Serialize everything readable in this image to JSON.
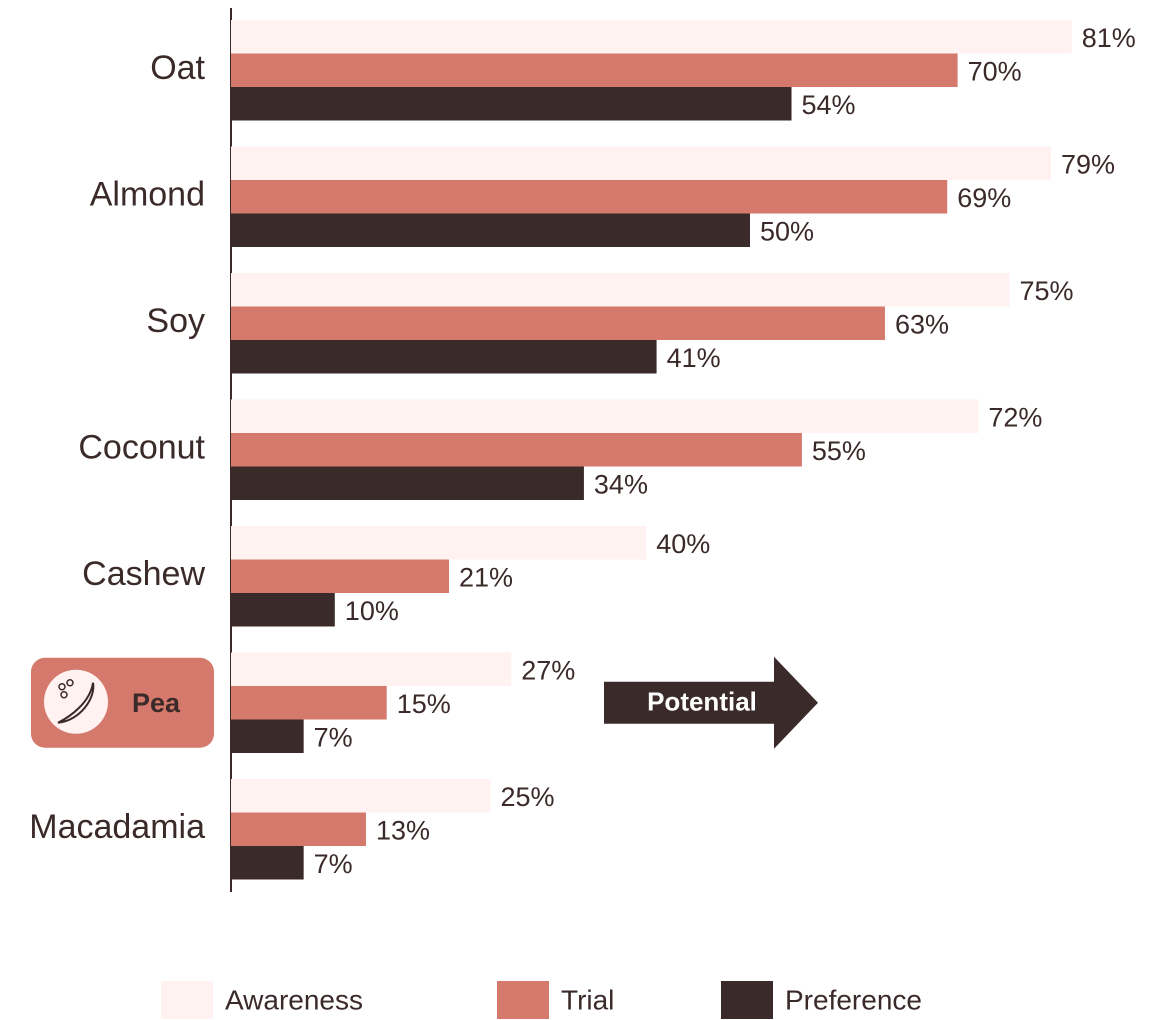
{
  "chart_data": {
    "type": "bar",
    "orientation": "horizontal",
    "categories": [
      "Oat",
      "Almond",
      "Soy",
      "Coconut",
      "Cashew",
      "Pea",
      "Macadamia"
    ],
    "highlight": 5,
    "annotation": "Potential",
    "xlim": [
      0,
      100
    ],
    "series": [
      {
        "name": "Awareness",
        "color": "#fff2f0",
        "values": [
          81,
          79,
          75,
          72,
          40,
          27,
          25
        ],
        "value_labels": [
          "81%",
          "79%",
          "75%",
          "72%",
          "40%",
          "27%",
          "25%"
        ]
      },
      {
        "name": "Trial",
        "color": "#d4796b",
        "values": [
          70,
          69,
          63,
          55,
          21,
          15,
          13
        ],
        "value_labels": [
          "70%",
          "69%",
          "63%",
          "55%",
          "21%",
          "15%",
          "13%"
        ]
      },
      {
        "name": "Preference",
        "color": "#3b2a2a",
        "values": [
          54,
          50,
          41,
          34,
          10,
          7,
          7
        ],
        "value_labels": [
          "54%",
          "50%",
          "41%",
          "34%",
          "10%",
          "7%",
          "7%"
        ]
      }
    ]
  }
}
